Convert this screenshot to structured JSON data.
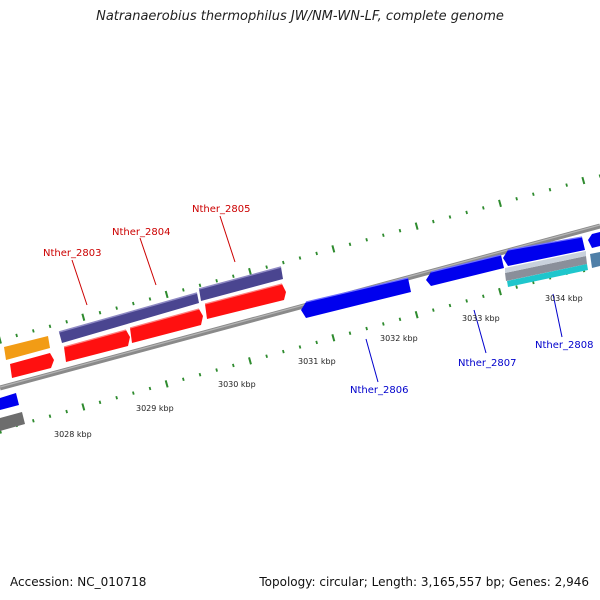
{
  "title": "Natranaerobius thermophilus JW/NM-WN-LF, complete genome",
  "footer": {
    "accession": "Accession: NC_010718",
    "topology": "Topology: circular; Length: 3,165,557 bp; Genes: 2,946"
  },
  "colors": {
    "genome_line": "#8a8a8a",
    "tick": "#2e8b2e",
    "gene_forward": "#0000ee",
    "gene_reverse": "#ff1010",
    "gene_purple": "#4a4590",
    "gene_orange": "#f29c15",
    "gene_gray": "#6d6d6d",
    "gene_cyan": "#1fc6cc",
    "label_red": "#cc0000",
    "label_blue": "#0000cc"
  },
  "scale_labels": [
    "3028 kbp",
    "3029 kbp",
    "3030 kbp",
    "3031 kbp",
    "3032 kbp",
    "3033 kbp",
    "3034 kbp"
  ],
  "gene_labels": [
    {
      "name": "Nther_2803",
      "strand": "reverse"
    },
    {
      "name": "Nther_2804",
      "strand": "reverse"
    },
    {
      "name": "Nther_2805",
      "strand": "reverse"
    },
    {
      "name": "Nther_2806",
      "strand": "forward"
    },
    {
      "name": "Nther_2807",
      "strand": "forward"
    },
    {
      "name": "Nther_2808",
      "strand": "forward"
    }
  ]
}
